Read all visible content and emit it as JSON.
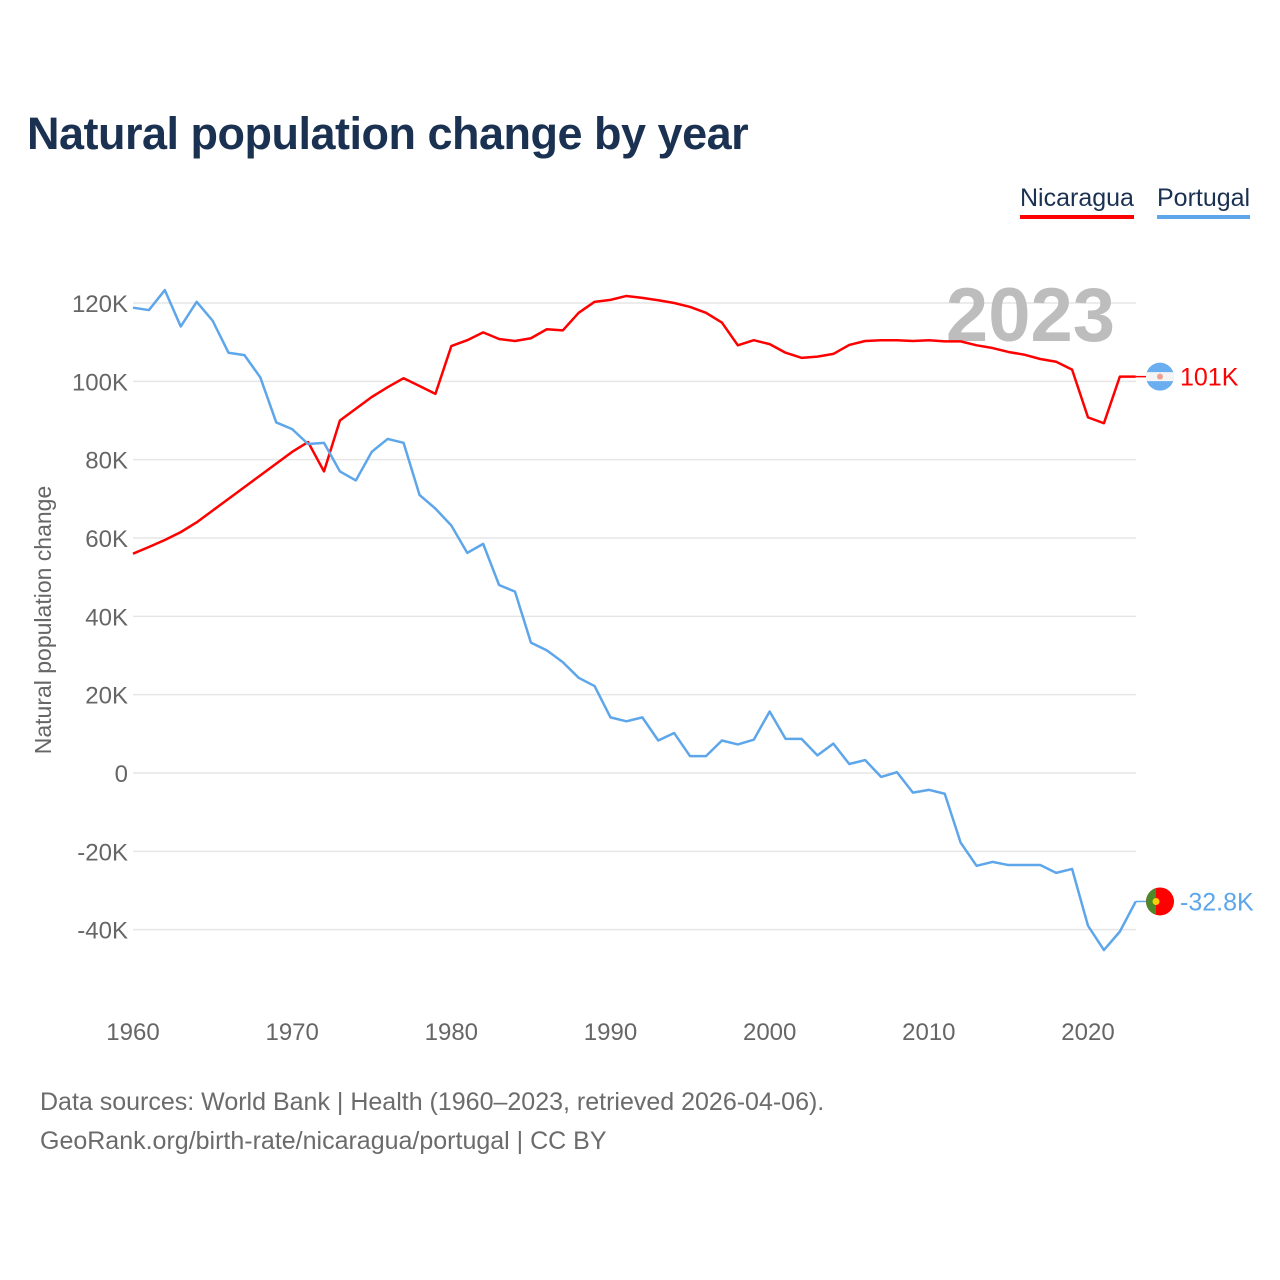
{
  "title": "Natural population change by year",
  "legend": [
    "Nicaragua",
    "Portugal"
  ],
  "year_label": "2023",
  "footer": {
    "line1": "Data sources: World Bank | Health (1960–2023, retrieved 2026-04-06).",
    "line2": "GeoRank.org/birth-rate/nicaragua/portugal | CC BY"
  },
  "chart_data": {
    "type": "line",
    "title": "Natural population change by year",
    "xlabel": "",
    "ylabel": "Natural population change",
    "xlim": [
      1960,
      2023
    ],
    "ylim": [
      -50000,
      125000
    ],
    "xticks": [
      1960,
      1970,
      1980,
      1990,
      2000,
      2010,
      2020
    ],
    "yticks": [
      -40000,
      -20000,
      0,
      20000,
      40000,
      60000,
      80000,
      100000,
      120000
    ],
    "ytick_labels": [
      "-40K",
      "-20K",
      "0",
      "20K",
      "40K",
      "60K",
      "80K",
      "100K",
      "120K"
    ],
    "grid": true,
    "legend_position": "top-right",
    "x_start": 1960,
    "series": [
      {
        "name": "Nicaragua",
        "color": "#ff0000",
        "end_label": "101K",
        "values": [
          56000,
          57700,
          59500,
          61500,
          64000,
          67000,
          70000,
          73000,
          76000,
          79000,
          82000,
          84500,
          77000,
          90000,
          93000,
          96000,
          98500,
          100800,
          98800,
          96800,
          109000,
          110500,
          112500,
          110800,
          110300,
          111000,
          113300,
          113000,
          117500,
          120300,
          120800,
          121800,
          121300,
          120700,
          120000,
          119000,
          117500,
          115000,
          109200,
          110500,
          109500,
          107300,
          106000,
          106300,
          107000,
          109300,
          110300,
          110500,
          110500,
          110300,
          110500,
          110200,
          110200,
          109200,
          108500,
          107500,
          106800,
          105700,
          105000,
          103000,
          90800,
          89300,
          101200,
          101200
        ]
      },
      {
        "name": "Portugal",
        "color": "#5ea6ea",
        "end_label": "-32.8K",
        "values": [
          118800,
          118200,
          123300,
          114000,
          120300,
          115500,
          107300,
          106700,
          101000,
          89500,
          87800,
          84000,
          84300,
          77000,
          74700,
          82000,
          85300,
          84300,
          71000,
          67500,
          63200,
          56200,
          58500,
          48000,
          46300,
          33300,
          31300,
          28300,
          24300,
          22200,
          14200,
          13200,
          14200,
          8300,
          10200,
          4300,
          4300,
          8300,
          7300,
          8500,
          15700,
          8700,
          8700,
          4500,
          7500,
          2300,
          3300,
          -1000,
          200,
          -5000,
          -4300,
          -5300,
          -17800,
          -23700,
          -22700,
          -23500,
          -23500,
          -23500,
          -25500,
          -24500,
          -39000,
          -45200,
          -40500,
          -32800
        ]
      }
    ]
  }
}
